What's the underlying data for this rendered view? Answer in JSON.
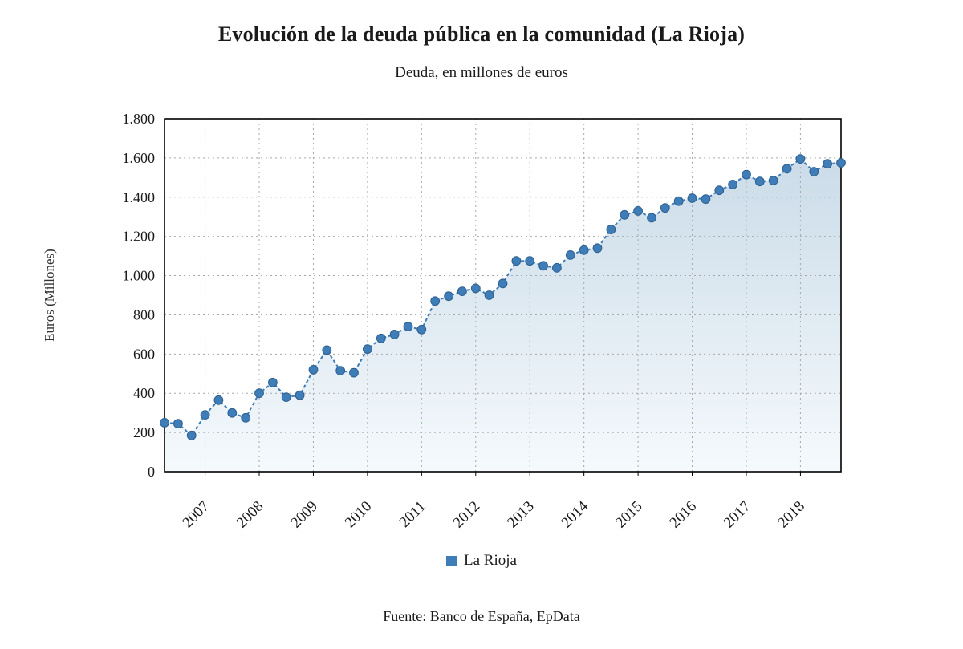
{
  "page": {
    "title": "Evolución de la deuda pública en la comunidad (La Rioja)",
    "subtitle": "Deuda, en millones de euros",
    "source": "Fuente: Banco de España, EpData"
  },
  "chart_data": {
    "type": "line",
    "title": "Evolución de la deuda pública en la comunidad (La Rioja)",
    "subtitle": "Deuda, en millones de euros",
    "ylabel": "Euros (Millones)",
    "xlabel": "",
    "ylim": [
      0,
      1800
    ],
    "ytick_step": 200,
    "grid": true,
    "legend_position": "bottom",
    "legend": [
      "La Rioja"
    ],
    "series_name": "La Rioja",
    "x": [
      "2006-Q2",
      "2006-Q3",
      "2006-Q4",
      "2007-Q1",
      "2007-Q2",
      "2007-Q3",
      "2007-Q4",
      "2008-Q1",
      "2008-Q2",
      "2008-Q3",
      "2008-Q4",
      "2009-Q1",
      "2009-Q2",
      "2009-Q3",
      "2009-Q4",
      "2010-Q1",
      "2010-Q2",
      "2010-Q3",
      "2010-Q4",
      "2011-Q1",
      "2011-Q2",
      "2011-Q3",
      "2011-Q4",
      "2012-Q1",
      "2012-Q2",
      "2012-Q3",
      "2012-Q4",
      "2013-Q1",
      "2013-Q2",
      "2013-Q3",
      "2013-Q4",
      "2014-Q1",
      "2014-Q2",
      "2014-Q3",
      "2014-Q4",
      "2015-Q1",
      "2015-Q2",
      "2015-Q3",
      "2015-Q4",
      "2016-Q1",
      "2016-Q2",
      "2016-Q3",
      "2016-Q4",
      "2017-Q1",
      "2017-Q2",
      "2017-Q3",
      "2017-Q4",
      "2018-Q1",
      "2018-Q2",
      "2018-Q3",
      "2018-Q4"
    ],
    "values": [
      250,
      245,
      185,
      290,
      365,
      300,
      275,
      400,
      455,
      380,
      390,
      520,
      620,
      515,
      505,
      625,
      680,
      700,
      740,
      725,
      870,
      895,
      920,
      935,
      900,
      960,
      1075,
      1075,
      1050,
      1040,
      1105,
      1130,
      1140,
      1235,
      1310,
      1330,
      1295,
      1345,
      1380,
      1395,
      1390,
      1435,
      1465,
      1515,
      1480,
      1485,
      1545,
      1595,
      1530,
      1570,
      1575
    ],
    "x_tick_labels": [
      "2007",
      "2008",
      "2009",
      "2010",
      "2011",
      "2012",
      "2013",
      "2014",
      "2015",
      "2016",
      "2017",
      "2018"
    ],
    "x_tick_indices": [
      3,
      7,
      11,
      15,
      19,
      23,
      27,
      31,
      35,
      39,
      43,
      47
    ],
    "colors": {
      "line": "#3e7db8",
      "marker": "#3e7db8",
      "marker_edge": "#2e608f",
      "area_top": "#c5d8e6",
      "area_bottom": "#f4f9fc",
      "grid": "#a8a8a8",
      "border": "#000000"
    }
  }
}
